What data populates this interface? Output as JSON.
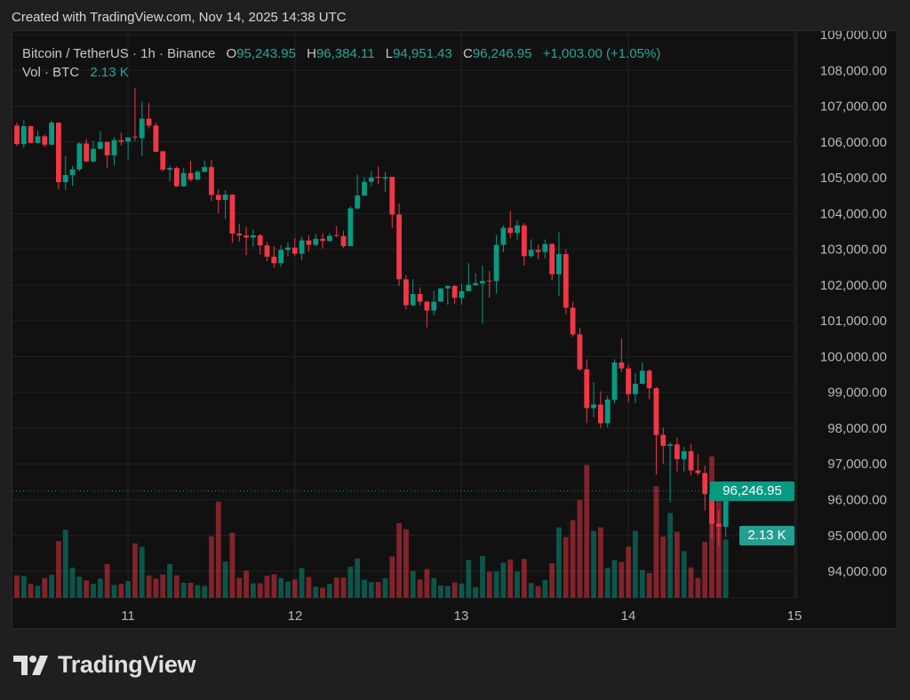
{
  "header": {
    "created": "Created with TradingView.com, Nov 14, 2025 14:38 UTC"
  },
  "legend": {
    "symbol": "Bitcoin / TetherUS · 1h · Binance",
    "o_label": "O",
    "open": "95,243.95",
    "h_label": "H",
    "high": "96,384.11",
    "l_label": "L",
    "low": "94,951.43",
    "c_label": "C",
    "close": "96,246.95",
    "change": "+1,003.00 (+1.05%)",
    "vol_label": "Vol · BTC",
    "vol_value": "2.13 K"
  },
  "price_axis": {
    "ticks": [
      "109,000.00",
      "108,000.00",
      "107,000.00",
      "106,000.00",
      "105,000.00",
      "104,000.00",
      "103,000.00",
      "102,000.00",
      "101,000.00",
      "100,000.00",
      "99,000.00",
      "98,000.00",
      "97,000.00",
      "96,000.00",
      "95,000.00",
      "94,000.00"
    ],
    "current_price_tag": "96,246.95",
    "volume_tag": "2.13 K"
  },
  "time_axis": {
    "ticks": [
      "11",
      "12",
      "13",
      "14",
      "15"
    ]
  },
  "logo": {
    "text": "TradingView"
  },
  "colors": {
    "up": "#089981",
    "down": "#f23645",
    "background": "#111111",
    "grid": "#222222"
  },
  "chart_data": {
    "type": "candlestick",
    "interval": "1h",
    "ylim": [
      93200,
      109100
    ],
    "grid": true,
    "columns": [
      "time",
      "open",
      "high",
      "low",
      "close",
      "volume_k"
    ],
    "candles": [
      [
        "2025-11-10 08:00",
        106458,
        106550,
        105883,
        105941,
        0.82
      ],
      [
        "2025-11-10 09:00",
        105941,
        106608,
        105833,
        106441,
        0.8
      ],
      [
        "2025-11-10 10:00",
        106441,
        106458,
        105958,
        105975,
        0.51
      ],
      [
        "2025-11-10 11:00",
        105975,
        106316,
        105958,
        106158,
        0.44
      ],
      [
        "2025-11-10 12:00",
        106158,
        106208,
        105858,
        105925,
        0.72
      ],
      [
        "2025-11-10 13:00",
        105925,
        106591,
        105908,
        106541,
        0.84
      ],
      [
        "2025-11-10 14:00",
        106541,
        106541,
        104675,
        104875,
        2.07
      ],
      [
        "2025-11-10 15:00",
        104875,
        105608,
        104658,
        105075,
        2.49
      ],
      [
        "2025-11-10 16:00",
        105075,
        105333,
        104775,
        105233,
        1.1
      ],
      [
        "2025-11-10 17:00",
        105233,
        105983,
        105175,
        105958,
        0.77
      ],
      [
        "2025-11-10 18:00",
        105958,
        106083,
        105425,
        105458,
        0.64
      ],
      [
        "2025-11-10 19:00",
        105458,
        106041,
        105416,
        105808,
        0.51
      ],
      [
        "2025-11-10 20:00",
        105808,
        106300,
        105791,
        106000,
        0.7
      ],
      [
        "2025-11-10 21:00",
        106000,
        106000,
        105275,
        105625,
        1.23
      ],
      [
        "2025-11-10 22:00",
        105625,
        106133,
        105358,
        106050,
        0.47
      ],
      [
        "2025-11-10 23:00",
        106050,
        106258,
        105900,
        106008,
        0.51
      ],
      [
        "2025-11-11 00:00",
        106008,
        106125,
        105508,
        106125,
        0.61
      ],
      [
        "2025-11-11 01:00",
        106150,
        107508,
        106025,
        106125,
        1.98
      ],
      [
        "2025-11-11 02:00",
        106108,
        107133,
        105608,
        106650,
        1.86
      ],
      [
        "2025-11-11 03:00",
        106650,
        107091,
        106375,
        106458,
        0.82
      ],
      [
        "2025-11-11 04:00",
        106458,
        106541,
        105708,
        105725,
        0.7
      ],
      [
        "2025-11-11 05:00",
        105741,
        105741,
        105175,
        105225,
        0.85
      ],
      [
        "2025-11-11 06:00",
        105225,
        105339,
        104901,
        105272,
        1.23
      ],
      [
        "2025-11-11 07:00",
        105272,
        105314,
        104735,
        104760,
        0.82
      ],
      [
        "2025-11-11 08:00",
        104760,
        105272,
        104752,
        105132,
        0.55
      ],
      [
        "2025-11-11 09:00",
        105132,
        105479,
        104901,
        104950,
        0.55
      ],
      [
        "2025-11-11 10:00",
        104950,
        105215,
        104917,
        105165,
        0.46
      ],
      [
        "2025-11-11 11:00",
        105165,
        105479,
        105148,
        105297,
        0.43
      ],
      [
        "2025-11-11 12:00",
        105297,
        105496,
        104339,
        104520,
        2.24
      ],
      [
        "2025-11-11 13:00",
        104520,
        104678,
        104008,
        104380,
        3.51
      ],
      [
        "2025-11-11 14:00",
        104380,
        104653,
        103843,
        104529,
        1.32
      ],
      [
        "2025-11-11 15:00",
        104529,
        104529,
        103182,
        103438,
        2.37
      ],
      [
        "2025-11-11 16:00",
        103438,
        103719,
        103207,
        103388,
        0.73
      ],
      [
        "2025-11-11 17:00",
        103388,
        103620,
        102835,
        103330,
        0.99
      ],
      [
        "2025-11-11 18:00",
        103330,
        103554,
        103066,
        103388,
        0.53
      ],
      [
        "2025-11-11 19:00",
        103388,
        103438,
        102851,
        103107,
        0.53
      ],
      [
        "2025-11-11 20:00",
        103107,
        103206,
        102669,
        102793,
        0.8
      ],
      [
        "2025-11-11 21:00",
        102793,
        103082,
        102479,
        102611,
        0.86
      ],
      [
        "2025-11-11 22:00",
        102611,
        103115,
        102504,
        102983,
        0.72
      ],
      [
        "2025-11-11 23:00",
        102983,
        103190,
        102801,
        103049,
        0.59
      ],
      [
        "2025-11-12 00:00",
        103049,
        103314,
        102818,
        102876,
        0.67
      ],
      [
        "2025-11-12 01:00",
        102876,
        103355,
        102686,
        103248,
        1.08
      ],
      [
        "2025-11-12 02:00",
        103248,
        103397,
        102934,
        103124,
        0.76
      ],
      [
        "2025-11-12 03:00",
        103124,
        103433,
        103087,
        103293,
        0.41
      ],
      [
        "2025-11-12 04:00",
        103293,
        103449,
        103021,
        103235,
        0.37
      ],
      [
        "2025-11-12 05:00",
        103235,
        103458,
        103210,
        103375,
        0.51
      ],
      [
        "2025-11-12 06:00",
        103392,
        103648,
        103350,
        103367,
        0.74
      ],
      [
        "2025-11-12 07:00",
        103367,
        103516,
        103037,
        103086,
        0.74
      ],
      [
        "2025-11-12 08:00",
        103086,
        104200,
        103086,
        104143,
        1.14
      ],
      [
        "2025-11-12 09:00",
        104143,
        105083,
        104118,
        104505,
        1.43
      ],
      [
        "2025-11-12 10:00",
        104505,
        105025,
        104489,
        104885,
        0.66
      ],
      [
        "2025-11-12 11:00",
        104885,
        105182,
        104753,
        105009,
        0.57
      ],
      [
        "2025-11-12 12:00",
        105025,
        105314,
        104819,
        105000,
        0.58
      ],
      [
        "2025-11-12 13:00",
        104976,
        105166,
        104613,
        105017,
        0.71
      ],
      [
        "2025-11-12 14:00",
        105025,
        105025,
        103598,
        103969,
        1.51
      ],
      [
        "2025-11-12 15:00",
        103969,
        104283,
        101973,
        102162,
        2.72
      ],
      [
        "2025-11-12 16:00",
        102162,
        102278,
        101313,
        101437,
        2.5
      ],
      [
        "2025-11-12 17:00",
        101437,
        102162,
        101404,
        101750,
        0.97
      ],
      [
        "2025-11-12 18:00",
        101750,
        101932,
        101420,
        101535,
        0.67
      ],
      [
        "2025-11-12 19:00",
        101535,
        101560,
        100818,
        101288,
        1.05
      ],
      [
        "2025-11-12 20:00",
        101288,
        101849,
        101148,
        101535,
        0.72
      ],
      [
        "2025-11-12 21:00",
        101535,
        101907,
        101535,
        101907,
        0.45
      ],
      [
        "2025-11-12 22:00",
        101907,
        101998,
        101453,
        101973,
        0.43
      ],
      [
        "2025-11-12 23:00",
        101973,
        101998,
        101470,
        101643,
        0.56
      ],
      [
        "2025-11-13 00:00",
        101640,
        102029,
        101450,
        101830,
        0.52
      ],
      [
        "2025-11-13 01:00",
        101830,
        102609,
        101822,
        102004,
        1.38
      ],
      [
        "2025-11-13 02:00",
        102000,
        102327,
        101963,
        102054,
        0.39
      ],
      [
        "2025-11-13 03:00",
        102046,
        102551,
        100919,
        102112,
        1.53
      ],
      [
        "2025-11-13 04:00",
        102128,
        102393,
        101648,
        102112,
        0.95
      ],
      [
        "2025-11-13 05:00",
        102112,
        103403,
        101764,
        103122,
        0.96
      ],
      [
        "2025-11-13 06:00",
        103122,
        103668,
        102923,
        103602,
        1.28
      ],
      [
        "2025-11-13 07:00",
        103602,
        104082,
        103312,
        103461,
        1.4
      ],
      [
        "2025-11-13 08:00",
        103461,
        103809,
        103271,
        103668,
        0.96
      ],
      [
        "2025-11-13 09:00",
        103668,
        103735,
        102542,
        102807,
        1.42
      ],
      [
        "2025-11-13 10:00",
        102807,
        103279,
        102758,
        102981,
        0.54
      ],
      [
        "2025-11-13 11:00",
        102981,
        103130,
        102716,
        102923,
        0.43
      ],
      [
        "2025-11-13 12:00",
        102923,
        103271,
        102741,
        103147,
        0.65
      ],
      [
        "2025-11-13 13:00",
        103147,
        103172,
        102137,
        102302,
        1.26
      ],
      [
        "2025-11-13 14:00",
        102302,
        103478,
        101698,
        102865,
        2.57
      ],
      [
        "2025-11-13 15:00",
        102865,
        102989,
        101184,
        101367,
        2.21
      ],
      [
        "2025-11-13 16:00",
        101367,
        101532,
        100555,
        100621,
        2.83
      ],
      [
        "2025-11-13 17:00",
        100621,
        100803,
        99595,
        99645,
        3.56
      ],
      [
        "2025-11-13 18:00",
        99645,
        99926,
        98137,
        98560,
        4.84
      ],
      [
        "2025-11-13 19:00",
        98560,
        99280,
        98303,
        98659,
        2.44
      ],
      [
        "2025-11-13 20:00",
        98659,
        99032,
        97997,
        98137,
        2.57
      ],
      [
        "2025-11-13 21:00",
        98137,
        98907,
        98021,
        98800,
        1.09
      ],
      [
        "2025-11-13 22:00",
        98786,
        99926,
        98686,
        99835,
        1.38
      ],
      [
        "2025-11-13 23:00",
        99835,
        100496,
        99571,
        99670,
        1.31
      ],
      [
        "2025-11-14 00:00",
        99670,
        99777,
        98728,
        98951,
        1.86
      ],
      [
        "2025-11-14 01:00",
        98951,
        99546,
        98695,
        99240,
        2.44
      ],
      [
        "2025-11-14 02:00",
        99240,
        99843,
        99224,
        99604,
        1.02
      ],
      [
        "2025-11-14 03:00",
        99604,
        99637,
        98810,
        99116,
        0.91
      ],
      [
        "2025-11-14 04:00",
        99116,
        99157,
        96703,
        97810,
        4.07
      ],
      [
        "2025-11-14 05:00",
        97810,
        98017,
        97009,
        97505,
        2.23
      ],
      [
        "2025-11-14 06:00",
        97505,
        97604,
        95918,
        97546,
        3.09
      ],
      [
        "2025-11-14 07:00",
        97546,
        97736,
        96786,
        97133,
        2.41
      ],
      [
        "2025-11-14 08:00",
        97133,
        97480,
        96786,
        97356,
        1.7
      ],
      [
        "2025-11-14 09:00",
        97356,
        97546,
        96678,
        96819,
        1.11
      ],
      [
        "2025-11-14 10:00",
        96819,
        97274,
        96678,
        96745,
        0.73
      ],
      [
        "2025-11-14 11:00",
        96745,
        96951,
        95703,
        96158,
        2.04
      ],
      [
        "2025-11-14 12:00",
        96158,
        96200,
        94900,
        95331,
        5.15
      ],
      [
        "2025-11-14 13:00",
        95331,
        95700,
        94700,
        95243.95,
        3.8
      ],
      [
        "2025-11-14 14:00",
        95243.95,
        96384.11,
        94951.43,
        96246.95,
        2.13
      ]
    ],
    "last_price": 96246.95
  }
}
